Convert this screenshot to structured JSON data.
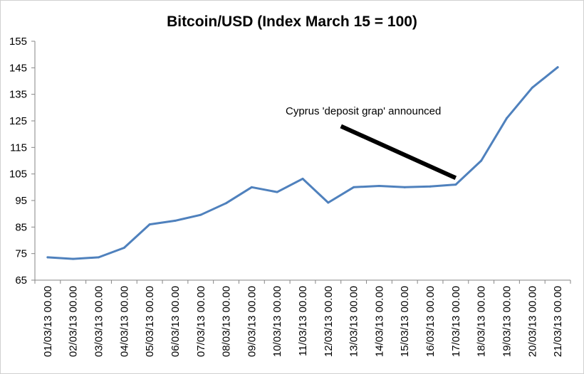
{
  "chart_data": {
    "type": "line",
    "title": "Bitcoin/USD (Index March 15 = 100)",
    "xlabel": "",
    "ylabel": "",
    "ylim": [
      65,
      155
    ],
    "yticks": [
      65,
      75,
      85,
      95,
      105,
      115,
      125,
      135,
      145,
      155
    ],
    "grid": false,
    "legend": "none",
    "categories": [
      "01/03/13 00.00",
      "02/03/13 00.00",
      "03/03/13 00.00",
      "04/03/13 00.00",
      "05/03/13 00.00",
      "06/03/13 00.00",
      "07/03/13 00.00",
      "08/03/13 00.00",
      "09/03/13 00.00",
      "10/03/13 00.00",
      "11/03/13 00.00",
      "12/03/13 00.00",
      "13/03/13 00.00",
      "14/03/13 00.00",
      "15/03/13 00.00",
      "16/03/13 00.00",
      "17/03/13 00.00",
      "18/03/13 00.00",
      "19/03/13 00.00",
      "20/03/13 00.00",
      "21/03/13 00.00"
    ],
    "series": [
      {
        "color": "#4f81bd",
        "values": [
          73.6,
          73.0,
          73.6,
          77.2,
          86.0,
          87.4,
          89.6,
          94.0,
          100.0,
          98.2,
          103.2,
          94.2,
          100.0,
          100.5,
          100.0,
          100.3,
          101.0,
          110.0,
          126.0,
          137.5,
          145.2
        ]
      }
    ],
    "annotation": {
      "text": "Cyprus 'deposit grap' announced",
      "arrow_from_index": 11.5,
      "arrow_from_value": 123,
      "arrow_to_index": 16.0,
      "arrow_to_value": 103.5
    }
  }
}
